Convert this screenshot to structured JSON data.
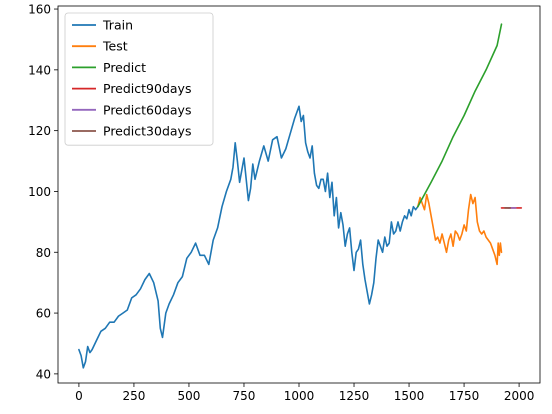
{
  "chart_data": {
    "type": "line",
    "title": "",
    "xlabel": "",
    "ylabel": "",
    "xlim": [
      -95,
      2095
    ],
    "ylim": [
      37,
      161
    ],
    "xticks": [
      0,
      250,
      500,
      750,
      1000,
      1250,
      1500,
      1750,
      2000
    ],
    "yticks": [
      40,
      60,
      80,
      100,
      120,
      140,
      160
    ],
    "grid": false,
    "legend_position": "top-left",
    "series": [
      {
        "name": "Train",
        "color": "#1f77b4",
        "x": [
          0,
          10,
          20,
          30,
          40,
          50,
          60,
          80,
          100,
          120,
          140,
          160,
          180,
          200,
          220,
          240,
          260,
          280,
          300,
          320,
          340,
          360,
          370,
          380,
          395,
          410,
          430,
          450,
          470,
          490,
          510,
          530,
          550,
          570,
          590,
          610,
          630,
          650,
          670,
          690,
          700,
          710,
          720,
          730,
          740,
          750,
          760,
          770,
          780,
          790,
          800,
          820,
          840,
          860,
          880,
          900,
          920,
          940,
          960,
          980,
          1000,
          1010,
          1020,
          1030,
          1040,
          1050,
          1060,
          1070,
          1080,
          1090,
          1100,
          1110,
          1120,
          1130,
          1140,
          1150,
          1160,
          1170,
          1180,
          1190,
          1200,
          1210,
          1220,
          1230,
          1240,
          1250,
          1260,
          1270,
          1280,
          1290,
          1300,
          1310,
          1320,
          1330,
          1340,
          1350,
          1360,
          1370,
          1380,
          1390,
          1400,
          1410,
          1420,
          1430,
          1440,
          1450,
          1460,
          1470,
          1480,
          1490,
          1500,
          1510,
          1520,
          1530,
          1540
        ],
        "y": [
          48,
          46,
          42,
          44,
          49,
          47,
          48,
          51,
          54,
          55,
          57,
          57,
          59,
          60,
          61,
          65,
          66,
          68,
          71,
          73,
          70,
          64,
          55,
          52,
          60,
          63,
          66,
          70,
          72,
          78,
          80,
          83,
          79,
          79,
          76,
          84,
          88,
          95,
          100,
          104,
          108,
          116,
          110,
          103,
          107,
          111,
          104,
          97,
          101,
          109,
          104,
          110,
          115,
          110,
          117,
          118,
          111,
          114,
          119,
          124,
          128,
          123,
          125,
          116,
          113,
          111,
          115,
          106,
          102,
          101,
          104,
          104,
          100,
          106,
          98,
          103,
          92,
          98,
          88,
          93,
          89,
          82,
          86,
          88,
          80,
          74,
          80,
          81,
          84,
          76,
          71,
          67,
          63,
          66,
          70,
          78,
          84,
          82,
          80,
          85,
          82,
          83,
          90,
          86,
          87,
          90,
          87,
          90,
          92,
          91,
          94,
          92,
          95,
          94,
          95
        ]
      },
      {
        "name": "Test",
        "color": "#ff7f0e",
        "x": [
          1540,
          1550,
          1560,
          1570,
          1580,
          1590,
          1600,
          1610,
          1620,
          1630,
          1640,
          1650,
          1660,
          1670,
          1680,
          1690,
          1700,
          1710,
          1720,
          1730,
          1740,
          1750,
          1760,
          1770,
          1780,
          1790,
          1800,
          1810,
          1820,
          1830,
          1840,
          1850,
          1860,
          1870,
          1880,
          1890,
          1900,
          1905,
          1910,
          1915,
          1920
        ],
        "y": [
          95,
          98,
          96,
          94,
          99,
          96,
          92,
          88,
          84,
          85,
          83,
          86,
          83,
          80,
          84,
          86,
          82,
          87,
          86,
          84,
          86,
          89,
          87,
          94,
          99,
          96,
          98,
          90,
          87,
          86,
          87,
          85,
          84,
          83,
          81,
          79,
          76,
          83,
          79,
          83,
          80
        ]
      },
      {
        "name": "Predict",
        "color": "#2ca02c",
        "x": [
          1540,
          1600,
          1650,
          1700,
          1750,
          1800,
          1850,
          1900,
          1920
        ],
        "y": [
          95,
          103,
          110,
          118,
          125,
          133,
          140,
          148,
          155
        ]
      },
      {
        "name": "Predict90days",
        "color": "#d62728",
        "x": [
          1920,
          2010
        ],
        "y": [
          94.6,
          94.6
        ]
      },
      {
        "name": "Predict60days",
        "color": "#9467bd",
        "x": [
          1950,
          1985
        ],
        "y": [
          94.6,
          94.6
        ]
      },
      {
        "name": "Predict30days",
        "color": "#8c564b",
        "x": [
          1935,
          1960
        ],
        "y": [
          94.6,
          94.6
        ]
      }
    ]
  }
}
